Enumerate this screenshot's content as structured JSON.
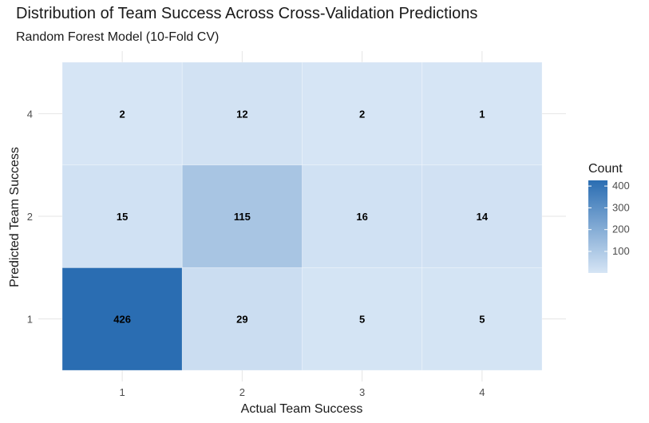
{
  "chart_data": {
    "type": "heatmap",
    "title": "Distribution of Team Success Across Cross-Validation Predictions",
    "subtitle": "Random Forest Model (10-Fold CV)",
    "xlabel": "Actual Team Success",
    "ylabel": "Predicted Team Success",
    "x_categories": [
      "1",
      "2",
      "3",
      "4"
    ],
    "y_categories": [
      "1",
      "2",
      "4"
    ],
    "cells": [
      {
        "x": "1",
        "y": "1",
        "value": 426
      },
      {
        "x": "2",
        "y": "1",
        "value": 29
      },
      {
        "x": "3",
        "y": "1",
        "value": 5
      },
      {
        "x": "4",
        "y": "1",
        "value": 5
      },
      {
        "x": "1",
        "y": "2",
        "value": 15
      },
      {
        "x": "2",
        "y": "2",
        "value": 115
      },
      {
        "x": "3",
        "y": "2",
        "value": 16
      },
      {
        "x": "4",
        "y": "2",
        "value": 14
      },
      {
        "x": "1",
        "y": "4",
        "value": 2
      },
      {
        "x": "2",
        "y": "4",
        "value": 12
      },
      {
        "x": "3",
        "y": "4",
        "value": 2
      },
      {
        "x": "4",
        "y": "4",
        "value": 1
      }
    ],
    "legend": {
      "title": "Count",
      "ticks": [
        100,
        200,
        300,
        400
      ],
      "min": 1,
      "max": 426,
      "low_color": "#d6e5f5",
      "high_color": "#2a6db2"
    },
    "grid": true,
    "legend_position": "right"
  }
}
